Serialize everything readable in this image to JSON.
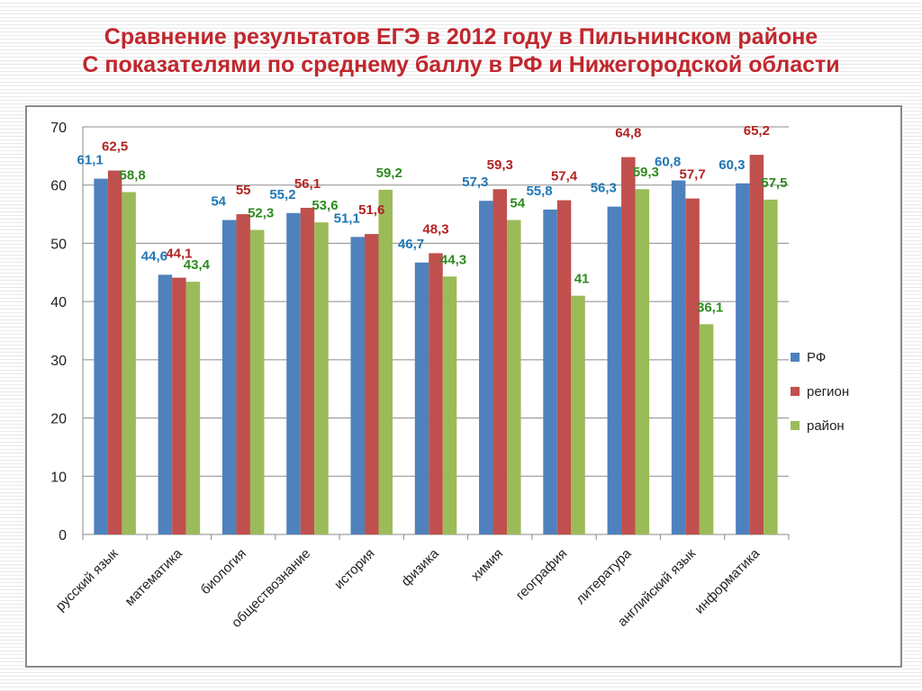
{
  "header": {
    "title_line1": "Сравнение результатов ЕГЭ в 2012 году в Пильнинском районе",
    "title_line2": "С показателями по среднему баллу в РФ и Нижегородской области"
  },
  "colors": {
    "title": "#c0272d",
    "series": [
      "#4f81bd",
      "#c0504d",
      "#9bbb59"
    ],
    "labels": [
      "#1f77b4",
      "#b22222",
      "#2e8b1f"
    ]
  },
  "chart_data": {
    "type": "bar",
    "categories": [
      "русский язык",
      "математика",
      "биология",
      "обществознание",
      "история",
      "физика",
      "химия",
      "география",
      "литература",
      "английский язык",
      "информатика"
    ],
    "series": [
      {
        "name": "РФ",
        "values": [
          61.1,
          44.6,
          54,
          55.2,
          51.1,
          46.7,
          57.3,
          55.8,
          56.3,
          60.8,
          60.3
        ],
        "labels": [
          "61,1",
          "44,6",
          "54",
          "55,2",
          "51,1",
          "46,7",
          "57,3",
          "55,8",
          "56,3",
          "60,8",
          "60,3"
        ]
      },
      {
        "name": "регион",
        "values": [
          62.5,
          44.1,
          55,
          56.1,
          51.6,
          48.3,
          59.3,
          57.4,
          64.8,
          57.7,
          65.2
        ],
        "labels": [
          "62,5",
          "44,1",
          "55",
          "56,1",
          "51,6",
          "48,3",
          "59,3",
          "57,4",
          "64,8",
          "57,7",
          "65,2"
        ]
      },
      {
        "name": "район",
        "values": [
          58.8,
          43.4,
          52.3,
          53.6,
          59.2,
          44.3,
          54,
          41,
          59.3,
          36.1,
          57.5
        ],
        "labels": [
          "58,8",
          "43,4",
          "52,3",
          "53,6",
          "59,2",
          "44,3",
          "54",
          "41",
          "59,3",
          "36,1",
          "57,5"
        ]
      }
    ],
    "ylim": [
      0,
      70
    ],
    "yticks": [
      0,
      10,
      20,
      30,
      40,
      50,
      60,
      70
    ],
    "grid": true,
    "legend": "right",
    "xlabel": "",
    "ylabel": ""
  }
}
